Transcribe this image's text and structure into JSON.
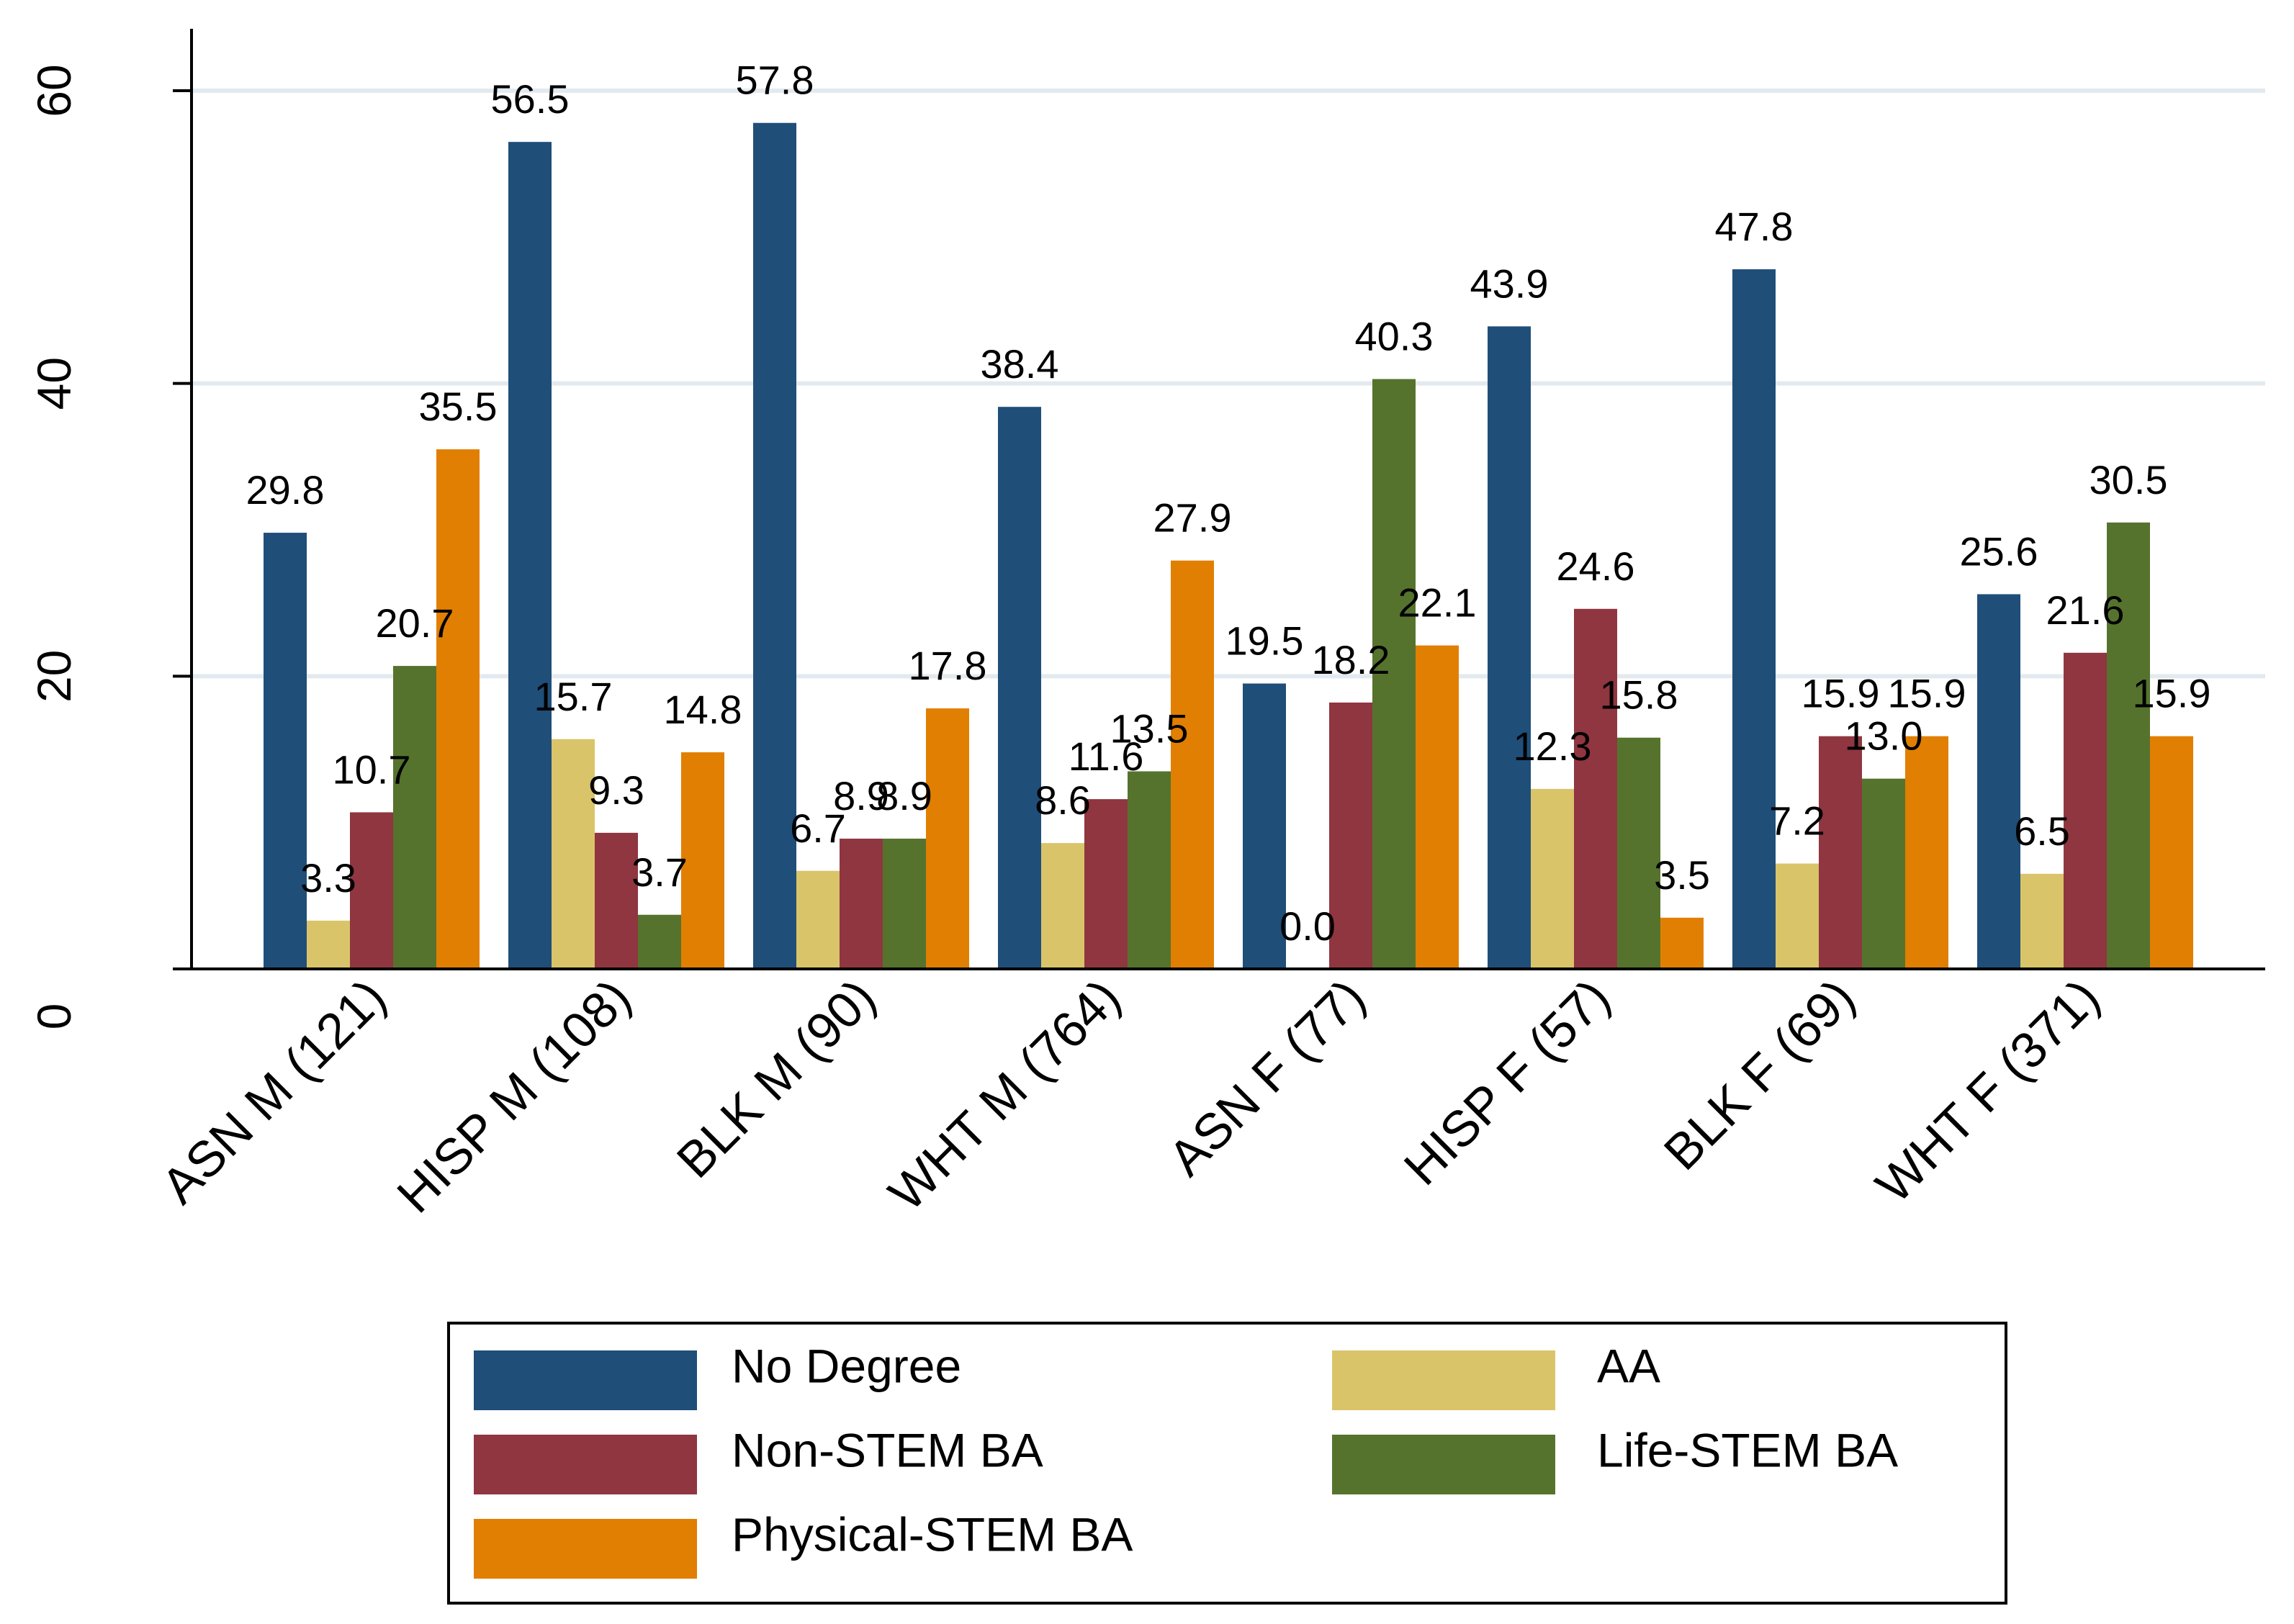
{
  "chart_data": {
    "type": "bar",
    "title": "",
    "xlabel": "",
    "ylabel": "",
    "ylim": [
      0,
      65
    ],
    "yticks": [
      0,
      20,
      40,
      60
    ],
    "grid": true,
    "legend_position": "bottom",
    "categories": [
      "ASN M (121)",
      "HISP M (108)",
      "BLK M (90)",
      "WHT M (764)",
      "ASN F (77)",
      "HISP F (57)",
      "BLK F (69)",
      "WHT F (371)"
    ],
    "series": [
      {
        "name": "No Degree",
        "color": "#1f4e79",
        "values": [
          29.8,
          56.5,
          57.8,
          38.4,
          19.5,
          43.9,
          47.8,
          25.6
        ]
      },
      {
        "name": "AA",
        "color": "#dac46a",
        "values": [
          3.3,
          15.7,
          6.7,
          8.6,
          0.0,
          12.3,
          7.2,
          6.5
        ]
      },
      {
        "name": "Non-STEM BA",
        "color": "#8f3640",
        "values": [
          10.7,
          9.3,
          8.9,
          11.6,
          18.2,
          24.6,
          15.9,
          21.6
        ]
      },
      {
        "name": "Life-STEM BA",
        "color": "#55732d",
        "values": [
          20.7,
          3.7,
          8.9,
          13.5,
          40.3,
          15.8,
          13.0,
          30.5
        ]
      },
      {
        "name": "Physical-STEM BA",
        "color": "#e17f02",
        "values": [
          35.5,
          14.8,
          17.8,
          27.9,
          22.1,
          3.5,
          15.9,
          15.9
        ]
      }
    ],
    "data_labels": [
      [
        "29.8",
        "3.3",
        "10.7",
        "20.7",
        "35.5"
      ],
      [
        "56.5",
        "15.7",
        "9.3",
        "3.7",
        "14.8"
      ],
      [
        "57.8",
        "6.7",
        "8.9",
        "8.9",
        "17.8"
      ],
      [
        "38.4",
        "8.6",
        "11.6",
        "13.5",
        "27.9"
      ],
      [
        "19.5",
        "0.0",
        "18.2",
        "40.3",
        "22.1"
      ],
      [
        "43.9",
        "12.3",
        "24.6",
        "15.8",
        "3.5"
      ],
      [
        "47.8",
        "7.2",
        "15.9",
        "13.0",
        "15.9"
      ],
      [
        "25.6",
        "6.5",
        "21.6",
        "30.5",
        "15.9"
      ]
    ],
    "ytick_labels": [
      "0",
      "20",
      "40",
      "60"
    ]
  },
  "legend": {
    "items": [
      {
        "label": "No Degree",
        "color": "#1f4e79",
        "icon": "blue-swatch"
      },
      {
        "label": "AA",
        "color": "#dac46a",
        "icon": "yellow-swatch"
      },
      {
        "label": "Non-STEM BA",
        "color": "#8f3640",
        "icon": "red-swatch"
      },
      {
        "label": "Life-STEM BA",
        "color": "#55732d",
        "icon": "green-swatch"
      },
      {
        "label": "Physical-STEM BA",
        "color": "#e17f02",
        "icon": "orange-swatch"
      }
    ]
  }
}
